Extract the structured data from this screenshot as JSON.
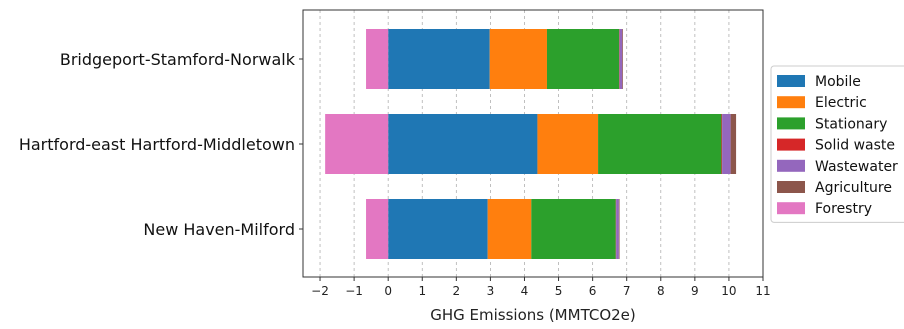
{
  "chart_data": {
    "type": "bar",
    "orientation": "horizontal",
    "stacked": true,
    "categories": [
      "Bridgeport-Stamford-Norwalk",
      "Hartford-east Hartford-Middletown",
      "New Haven-Milford"
    ],
    "series": [
      {
        "name": "Mobile",
        "color": "#1f77b4",
        "values": [
          2.98,
          4.38,
          2.92
        ]
      },
      {
        "name": "Electric",
        "color": "#ff7f0e",
        "values": [
          1.68,
          1.78,
          1.28
        ]
      },
      {
        "name": "Stationary",
        "color": "#2ca02c",
        "values": [
          2.12,
          3.62,
          2.48
        ]
      },
      {
        "name": "Solid waste",
        "color": "#d62728",
        "values": [
          0.01,
          0.02,
          0.01
        ]
      },
      {
        "name": "Wastewater",
        "color": "#9467bd",
        "values": [
          0.08,
          0.25,
          0.08
        ]
      },
      {
        "name": "Agriculture",
        "color": "#8c564b",
        "values": [
          0.02,
          0.16,
          0.02
        ]
      },
      {
        "name": "Forestry",
        "color": "#e377c2",
        "values": [
          -0.65,
          -1.85,
          -0.65
        ]
      }
    ],
    "xlabel": "GHG Emissions (MMTCO2e)",
    "ylabel": "",
    "title": "",
    "xlim": [
      -2.5,
      11
    ],
    "xticks": [
      -2,
      -1,
      0,
      1,
      2,
      3,
      4,
      5,
      6,
      7,
      8,
      9,
      10,
      11
    ],
    "x_grid": true,
    "legend_position": "outside-right"
  }
}
